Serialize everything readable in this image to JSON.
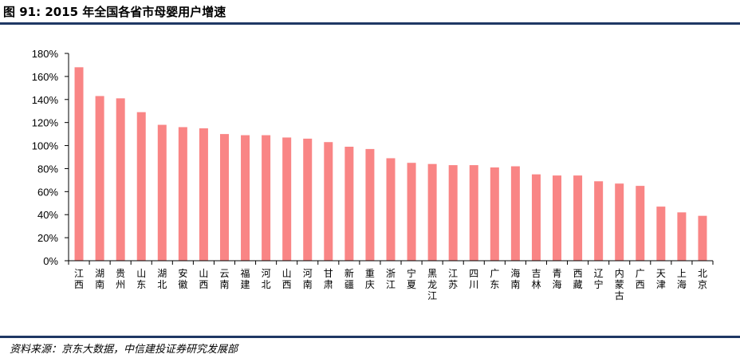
{
  "title": "图 91: 2015 年全国各省市母婴用户增速",
  "source": "资料来源：京东大数据，中信建投证券研究发展部",
  "colors": {
    "bar": "#f98585",
    "rule": "#1f3864",
    "axis": "#000000"
  },
  "chart_data": {
    "type": "bar",
    "title": "",
    "xlabel": "",
    "ylabel": "",
    "ylim": [
      0,
      180
    ],
    "yticks": [
      0,
      20,
      40,
      60,
      80,
      100,
      120,
      140,
      160,
      180
    ],
    "ytick_labels": [
      "0%",
      "20%",
      "40%",
      "60%",
      "80%",
      "100%",
      "120%",
      "140%",
      "160%",
      "180%"
    ],
    "grid": false,
    "legend": "none",
    "categories": [
      "江西",
      "湖南",
      "贵州",
      "山东",
      "湖北",
      "安徽",
      "山西",
      "云南",
      "福建",
      "河北",
      "山西",
      "河南",
      "甘肃",
      "新疆",
      "重庆",
      "浙江",
      "宁夏",
      "黑龙江",
      "江苏",
      "四川",
      "广东",
      "海南",
      "吉林",
      "青海",
      "西藏",
      "辽宁",
      "内蒙古",
      "广西",
      "天津",
      "上海",
      "北京"
    ],
    "values": [
      168,
      143,
      141,
      129,
      118,
      116,
      115,
      110,
      109,
      109,
      107,
      106,
      103,
      99,
      97,
      89,
      85,
      84,
      83,
      83,
      81,
      82,
      75,
      74,
      74,
      69,
      67,
      65,
      47,
      42,
      39
    ]
  }
}
